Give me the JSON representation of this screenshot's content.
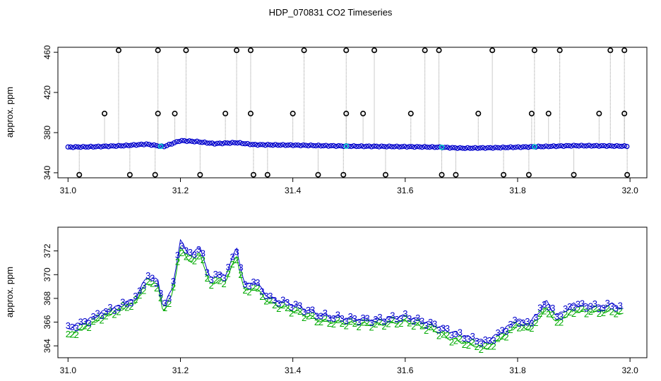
{
  "figure": {
    "title": "HDP_070831  CO2 Timeseries"
  },
  "colors": {
    "line": "#0000cc",
    "marker": "#0000cc",
    "label2": "#00aa00",
    "spike": "#000000",
    "spike_line": "#999999",
    "cyan": "#00cccc"
  },
  "chart_data": [
    {
      "type": "scatter",
      "ylabel": "approx. ppm",
      "xlabel": "",
      "xlim": [
        31.0,
        32.0
      ],
      "ylim": [
        335,
        465
      ],
      "x_ticks": [
        "31.0",
        "31.2",
        "31.4",
        "31.6",
        "31.8",
        "32.0"
      ],
      "y_ticks": [
        "340",
        "380",
        "420",
        "460"
      ],
      "baseline": {
        "x": [
          31.0,
          31.05,
          31.1,
          31.14,
          31.17,
          31.2,
          31.23,
          31.26,
          31.3,
          31.33,
          31.4,
          31.5,
          31.6,
          31.66,
          31.7,
          31.75,
          31.8,
          31.85,
          31.9,
          31.95,
          31.99
        ],
        "y": [
          365.5,
          366,
          367,
          368.5,
          366,
          372,
          371,
          369,
          370,
          368,
          367.5,
          366.5,
          366,
          365.5,
          364.5,
          364.8,
          365.5,
          366.2,
          367,
          366.8,
          366.5
        ]
      },
      "spikes_high": [
        31.09,
        31.16,
        31.21,
        31.3,
        31.325,
        31.42,
        31.495,
        31.545,
        31.635,
        31.66,
        31.755,
        31.83,
        31.875,
        31.965,
        31.99
      ],
      "spikes_mid": [
        31.065,
        31.16,
        31.19,
        31.28,
        31.325,
        31.4,
        31.495,
        31.525,
        31.61,
        31.73,
        31.825,
        31.855,
        31.945,
        31.99
      ],
      "spikes_low": [
        31.02,
        31.11,
        31.155,
        31.235,
        31.33,
        31.355,
        31.445,
        31.49,
        31.565,
        31.665,
        31.69,
        31.775,
        31.82,
        31.9,
        31.995
      ]
    },
    {
      "type": "line",
      "ylabel": "approx. ppm",
      "xlabel": "",
      "xlim": [
        31.0,
        32.0
      ],
      "ylim": [
        363,
        374
      ],
      "x_ticks": [
        "31.0",
        "31.2",
        "31.4",
        "31.6",
        "31.8",
        "32.0"
      ],
      "y_ticks": [
        "364",
        "366",
        "368",
        "370",
        "372"
      ],
      "series": [
        {
          "name": "3",
          "x": [
            31.0,
            31.03,
            31.06,
            31.09,
            31.12,
            31.14,
            31.16,
            31.17,
            31.185,
            31.2,
            31.22,
            31.235,
            31.25,
            31.28,
            31.3,
            31.315,
            31.33,
            31.36,
            31.4,
            31.45,
            31.5,
            31.55,
            31.6,
            31.65,
            31.68,
            31.72,
            31.745,
            31.78,
            31.8,
            31.82,
            31.84,
            31.85,
            31.87,
            31.9,
            31.95,
            31.97,
            31.99
          ],
          "y": [
            365.5,
            366,
            366.8,
            367.3,
            368,
            369.8,
            369.5,
            367.2,
            368.8,
            372.8,
            371.5,
            372.5,
            369.8,
            370,
            372.2,
            369,
            369.5,
            368,
            367.5,
            366.6,
            366.3,
            366.2,
            366.5,
            365.8,
            365.2,
            364.6,
            364.3,
            365.5,
            366.2,
            365.8,
            367,
            367.8,
            366.5,
            367.5,
            367.3,
            367.5,
            367
          ]
        },
        {
          "name": "2",
          "x": [
            31.0,
            31.03,
            31.06,
            31.09,
            31.12,
            31.14,
            31.16,
            31.17,
            31.185,
            31.2,
            31.22,
            31.235,
            31.25,
            31.28,
            31.3,
            31.315,
            31.33,
            31.36,
            31.4,
            31.45,
            31.5,
            31.55,
            31.6,
            31.65,
            31.68,
            31.72,
            31.745,
            31.78,
            31.8,
            31.82,
            31.84,
            31.85,
            31.87,
            31.9,
            31.95,
            31.97,
            31.99
          ],
          "y": [
            364.8,
            365.6,
            366.4,
            367,
            367.7,
            369.3,
            369.1,
            366.8,
            368.3,
            372.2,
            371,
            371.9,
            369.3,
            369.5,
            371.5,
            368.5,
            369,
            367.6,
            367,
            366.1,
            365.9,
            365.8,
            366.1,
            365.4,
            364.6,
            364.1,
            363.8,
            365,
            365.8,
            365.4,
            366.5,
            367.2,
            366,
            367,
            366.9,
            367,
            366.6
          ]
        }
      ]
    }
  ]
}
